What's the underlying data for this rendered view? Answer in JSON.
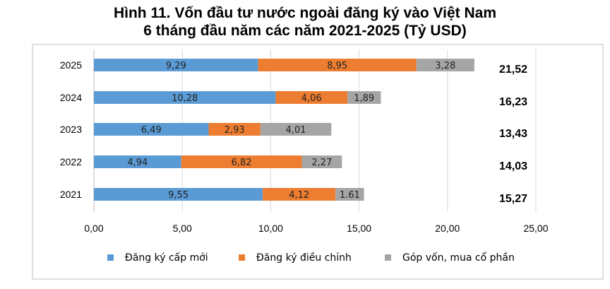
{
  "chart_data": {
    "type": "bar",
    "orientation": "horizontal",
    "stacked": true,
    "title_lines": [
      "Hình 11. Vốn đầu tư nước ngoài đăng ký vào Việt Nam",
      "6 tháng đầu năm các năm 2021-2025 (Tỷ USD)"
    ],
    "categories": [
      "2025",
      "2024",
      "2023",
      "2022",
      "2021"
    ],
    "series": [
      {
        "name": "Đăng ký cấp mới",
        "color": "#5B9BD5",
        "values": [
          9.29,
          10.28,
          6.49,
          4.94,
          9.55
        ],
        "labels": [
          "9,29",
          "10,28",
          "6,49",
          "4,94",
          "9,55"
        ]
      },
      {
        "name": "Đăng ký điều chỉnh",
        "color": "#ED7D31",
        "values": [
          8.95,
          4.06,
          2.93,
          6.82,
          4.12
        ],
        "labels": [
          "8,95",
          "4,06",
          "2,93",
          "6,82",
          "4,12"
        ]
      },
      {
        "name": "Góp vốn, mua cổ phần",
        "color": "#A5A5A5",
        "values": [
          3.28,
          1.89,
          4.01,
          2.27,
          1.61
        ],
        "labels": [
          "3,28",
          "1,89",
          "4,01",
          "2,27",
          "1.61"
        ]
      }
    ],
    "totals": [
      "21,52",
      "16,23",
      "13,43",
      "14,03",
      "15,27"
    ],
    "xlim": [
      0,
      25
    ],
    "xticks": [
      0,
      5,
      10,
      15,
      20,
      25
    ],
    "xtick_labels": [
      "0,00",
      "5,00",
      "10,00",
      "15,00",
      "20,00",
      "25,00"
    ],
    "grid": true,
    "legend_position": "bottom",
    "xlabel": "",
    "ylabel": ""
  }
}
